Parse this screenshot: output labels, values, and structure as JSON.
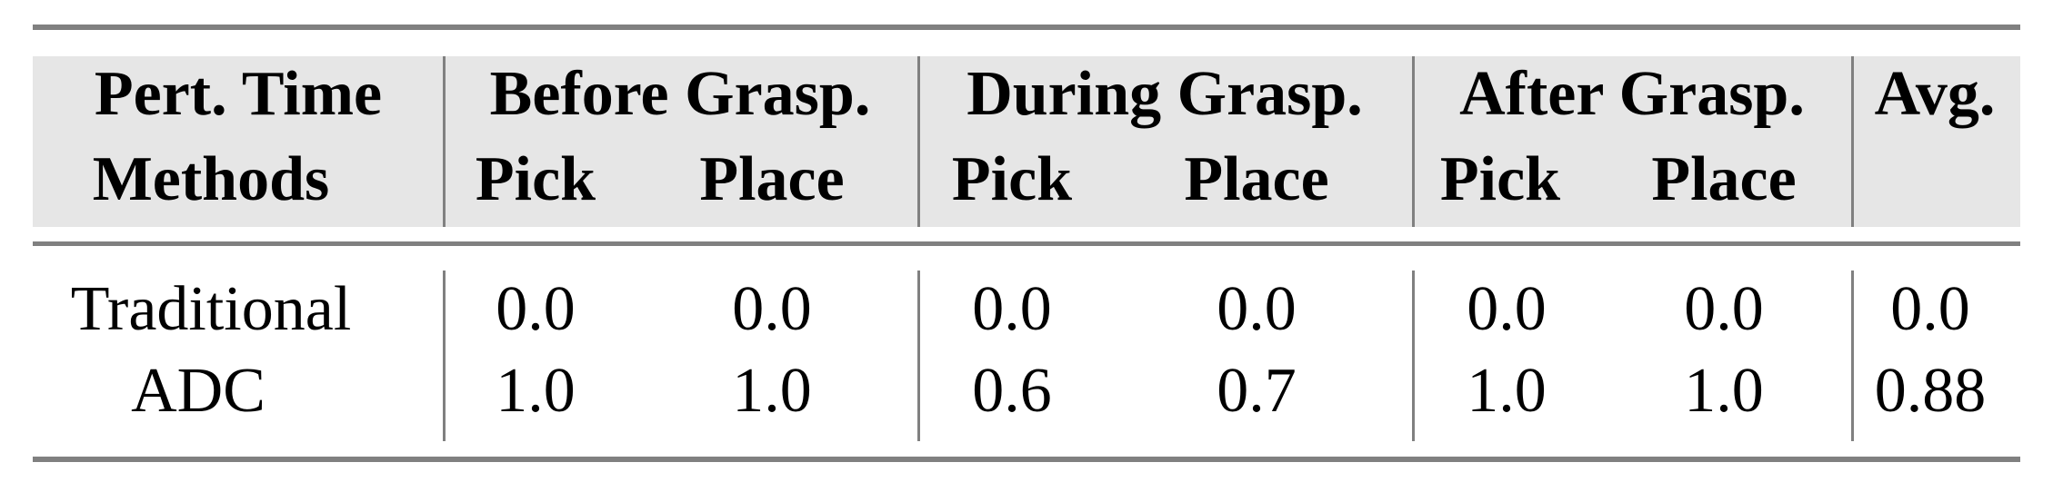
{
  "table": {
    "header_row1": {
      "corner": "Pert. Time",
      "groups": [
        "Before Grasp.",
        "During Grasp.",
        "After Grasp.",
        "Avg."
      ]
    },
    "header_row2": {
      "corner": "Methods",
      "subcolumns": [
        "Pick",
        "Place",
        "Pick",
        "Place",
        "Pick",
        "Place"
      ]
    },
    "rows": [
      {
        "method": "Traditional",
        "values": [
          "0.0",
          "0.0",
          "0.0",
          "0.0",
          "0.0",
          "0.0",
          "0.0"
        ]
      },
      {
        "method": "ADC",
        "values": [
          "1.0",
          "1.0",
          "0.6",
          "0.7",
          "1.0",
          "1.0",
          "0.88"
        ]
      }
    ]
  }
}
